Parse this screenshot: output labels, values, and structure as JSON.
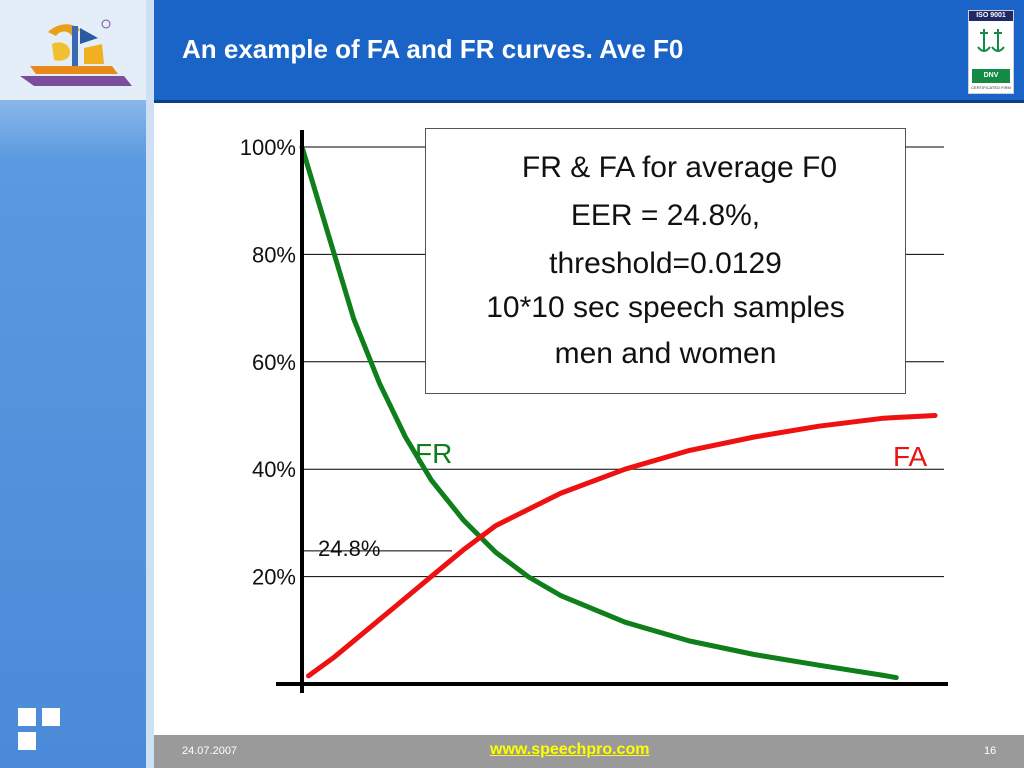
{
  "slide": {
    "title": "An example of FA and FR curves. Ave F0",
    "date": "24.07.2007",
    "url": "www.speechpro.com",
    "page": "16",
    "iso_badge": {
      "top_text": "ISO 9001",
      "mid_text": "DNV",
      "bottom_text": "CERTIFICATED FIRM"
    },
    "colors": {
      "header": "#1a64c8",
      "fr_curve": "#0f7f1c",
      "fa_curve": "#ee1111",
      "footer_url": "#ffff00"
    }
  },
  "chart_data": {
    "type": "line",
    "ylabel": "",
    "xlabel": "",
    "ylim": [
      0,
      100
    ],
    "yticks": [
      {
        "value": 100,
        "label": "100%"
      },
      {
        "value": 80,
        "label": "80%"
      },
      {
        "value": 60,
        "label": "60%"
      },
      {
        "value": 40,
        "label": "40%"
      },
      {
        "value": 20,
        "label": "20%"
      }
    ],
    "annotations": {
      "box_lines": [
        "FR & FA for average F0",
        "EER = 24.8%,",
        "threshold=0.0129",
        "10*10 sec speech samples",
        "men and women"
      ],
      "eer_label": "24.8%",
      "eer_value": 24.8
    },
    "series": [
      {
        "name": "FR",
        "x": [
          0,
          0.02,
          0.05,
          0.08,
          0.12,
          0.16,
          0.2,
          0.25,
          0.3,
          0.35,
          0.4,
          0.5,
          0.6,
          0.7,
          0.8,
          0.9,
          0.92
        ],
        "y": [
          100,
          92,
          80,
          68,
          56,
          46,
          38,
          30.5,
          24.5,
          20,
          16.5,
          11.5,
          8,
          5.5,
          3.5,
          1.6,
          1.2
        ]
      },
      {
        "name": "FA",
        "x": [
          0.01,
          0.05,
          0.1,
          0.15,
          0.2,
          0.25,
          0.3,
          0.35,
          0.4,
          0.5,
          0.6,
          0.7,
          0.8,
          0.9,
          0.98
        ],
        "y": [
          1.5,
          5,
          10,
          15,
          20,
          25,
          29.5,
          32.5,
          35.5,
          40,
          43.5,
          46,
          48,
          49.5,
          50
        ]
      }
    ]
  }
}
